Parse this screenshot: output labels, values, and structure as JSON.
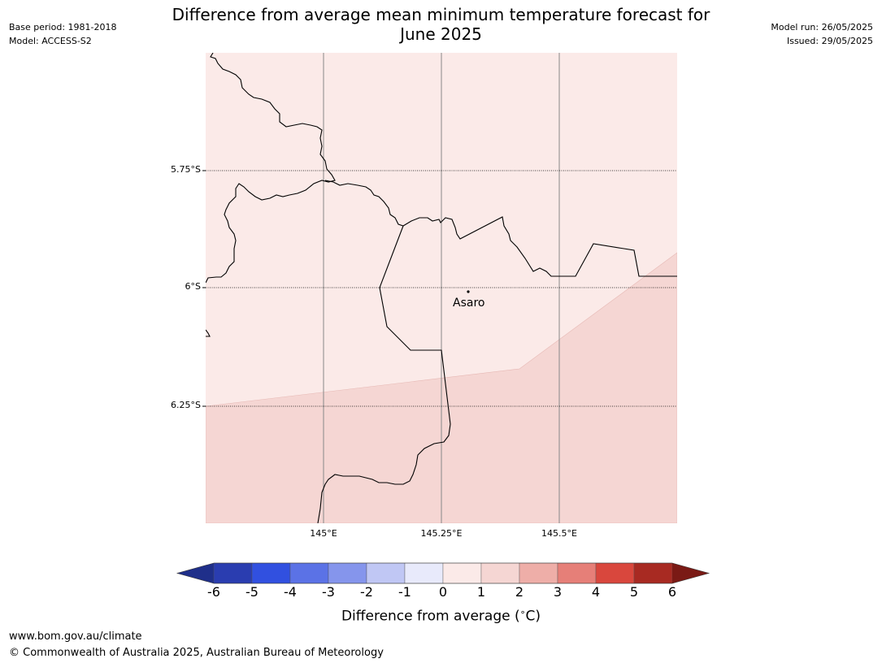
{
  "header": {
    "base_period": "Base period: 1981-2018",
    "model": "Model: ACCESS-S2",
    "model_run": "Model run: 26/05/2025",
    "issued": "Issued: 29/05/2025",
    "title_line1": "Difference from average mean minimum temperature forecast for",
    "title_line2": "June 2025"
  },
  "map": {
    "lat_labels": [
      "5.75°S",
      "6°S",
      "6.25°S"
    ],
    "lon_labels": [
      "145°E",
      "145.25°E",
      "145.5°E"
    ],
    "place": "Asaro",
    "colors": {
      "band_0_1": "#fbeae8",
      "band_1_2": "#f5d6d3",
      "border": "#000000",
      "grid": "#888888"
    }
  },
  "colorbar": {
    "ticks": [
      "-6",
      "-5",
      "-4",
      "-3",
      "-2",
      "-1",
      "0",
      "1",
      "2",
      "3",
      "4",
      "5",
      "6"
    ],
    "colors": [
      "#1f2f8a",
      "#2a3db0",
      "#3150e0",
      "#5b72e6",
      "#8595ec",
      "#c0c7f4",
      "#e8eafb",
      "#fbeae8",
      "#f5d6d3",
      "#eeaea8",
      "#e67f78",
      "#d9473d",
      "#a82a22",
      "#7a1a15"
    ],
    "label": "Difference from average (",
    "label_unit": "C)",
    "label_degree": "∘"
  },
  "footer": {
    "url": "www.bom.gov.au/climate",
    "copyright": "© Commonwealth of Australia 2025, Australian Bureau of Meteorology"
  }
}
